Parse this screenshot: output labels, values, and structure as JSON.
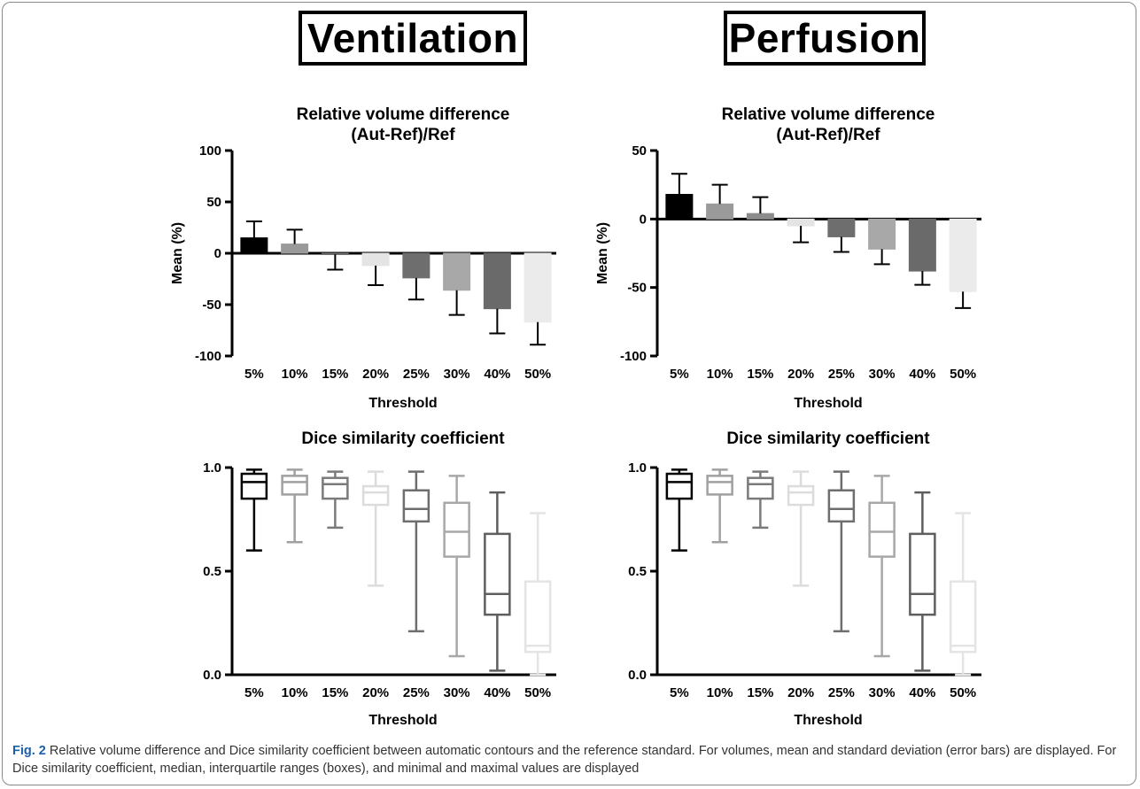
{
  "groups": {
    "left": "Ventilation",
    "right": "Perfusion"
  },
  "caption": {
    "label": "Fig. 2",
    "text": "Relative volume difference and Dice similarity coefficient between automatic contours and the reference standard. For volumes, mean and standard deviation (error bars) are displayed. For Dice similarity coefficient, median, interquartile ranges (boxes), and minimal and maximal values are displayed"
  },
  "chart_data": [
    {
      "id": "vent-volume",
      "type": "bar",
      "title": "Relative volume difference",
      "subtitle": "(Aut-Ref)/Ref",
      "xlabel": "Threshold",
      "ylabel": "Mean (%)",
      "ylim": [
        -100,
        100
      ],
      "yticks": [
        100,
        50,
        0,
        -50,
        -100
      ],
      "categories": [
        "5%",
        "10%",
        "15%",
        "20%",
        "25%",
        "30%",
        "40%",
        "50%"
      ],
      "values": [
        15,
        9,
        -1,
        -12,
        -24,
        -36,
        -54,
        -67
      ],
      "errors": [
        16,
        14,
        15,
        19,
        21,
        24,
        24,
        22
      ],
      "colors": [
        "#000000",
        "#9a9a9a",
        "#6e6e6e",
        "#e4e4e4",
        "#6e6e6e",
        "#a8a8a8",
        "#6a6a6a",
        "#ebebeb"
      ]
    },
    {
      "id": "perf-volume",
      "type": "bar",
      "title": "Relative volume difference",
      "subtitle": "(Aut-Ref)/Ref",
      "xlabel": "Threshold",
      "ylabel": "Mean (%)",
      "ylim": [
        -100,
        50
      ],
      "yticks": [
        50,
        0,
        -50,
        -100
      ],
      "categories": [
        "5%",
        "10%",
        "15%",
        "20%",
        "25%",
        "30%",
        "40%",
        "50%"
      ],
      "values": [
        18,
        11,
        4,
        -5,
        -13,
        -22,
        -38,
        -53
      ],
      "errors": [
        15,
        14,
        12,
        12,
        11,
        11,
        10,
        12
      ],
      "colors": [
        "#000000",
        "#9a9a9a",
        "#8c8c8c",
        "#e4e4e4",
        "#6e6e6e",
        "#a8a8a8",
        "#6a6a6a",
        "#ebebeb"
      ]
    },
    {
      "id": "vent-dice",
      "type": "box",
      "title": "Dice similarity coefficient",
      "xlabel": "Threshold",
      "ylabel": "",
      "ylim": [
        0,
        1
      ],
      "yticks": [
        1.0,
        0.5,
        0.0
      ],
      "categories": [
        "5%",
        "10%",
        "15%",
        "20%",
        "25%",
        "30%",
        "40%",
        "50%"
      ],
      "min": [
        0.6,
        0.64,
        0.71,
        0.43,
        0.21,
        0.09,
        0.02,
        0.0
      ],
      "q1": [
        0.85,
        0.87,
        0.85,
        0.82,
        0.74,
        0.57,
        0.29,
        0.11
      ],
      "median": [
        0.93,
        0.93,
        0.92,
        0.88,
        0.8,
        0.69,
        0.39,
        0.14
      ],
      "q3": [
        0.97,
        0.96,
        0.95,
        0.91,
        0.89,
        0.83,
        0.68,
        0.45
      ],
      "max": [
        0.99,
        0.99,
        0.98,
        0.98,
        0.98,
        0.96,
        0.88,
        0.78
      ],
      "colors": [
        "#000000",
        "#a0a0a0",
        "#7a7a7a",
        "#dcdcdc",
        "#6e6e6e",
        "#a8a8a8",
        "#5e5e5e",
        "#e4e4e4"
      ]
    },
    {
      "id": "perf-dice",
      "type": "box",
      "title": "Dice similarity coefficient",
      "xlabel": "Threshold",
      "ylabel": "",
      "ylim": [
        0,
        1
      ],
      "yticks": [
        1.0,
        0.5,
        0.0
      ],
      "categories": [
        "5%",
        "10%",
        "15%",
        "20%",
        "25%",
        "30%",
        "40%",
        "50%"
      ],
      "min": [
        0.6,
        0.64,
        0.71,
        0.43,
        0.21,
        0.09,
        0.02,
        0.0
      ],
      "q1": [
        0.85,
        0.87,
        0.85,
        0.82,
        0.74,
        0.57,
        0.29,
        0.11
      ],
      "median": [
        0.93,
        0.93,
        0.92,
        0.88,
        0.8,
        0.69,
        0.39,
        0.14
      ],
      "q3": [
        0.97,
        0.96,
        0.95,
        0.91,
        0.89,
        0.83,
        0.68,
        0.45
      ],
      "max": [
        0.99,
        0.99,
        0.98,
        0.98,
        0.98,
        0.96,
        0.88,
        0.78
      ],
      "colors": [
        "#000000",
        "#a0a0a0",
        "#7a7a7a",
        "#dcdcdc",
        "#6e6e6e",
        "#a8a8a8",
        "#5e5e5e",
        "#e4e4e4"
      ]
    }
  ]
}
